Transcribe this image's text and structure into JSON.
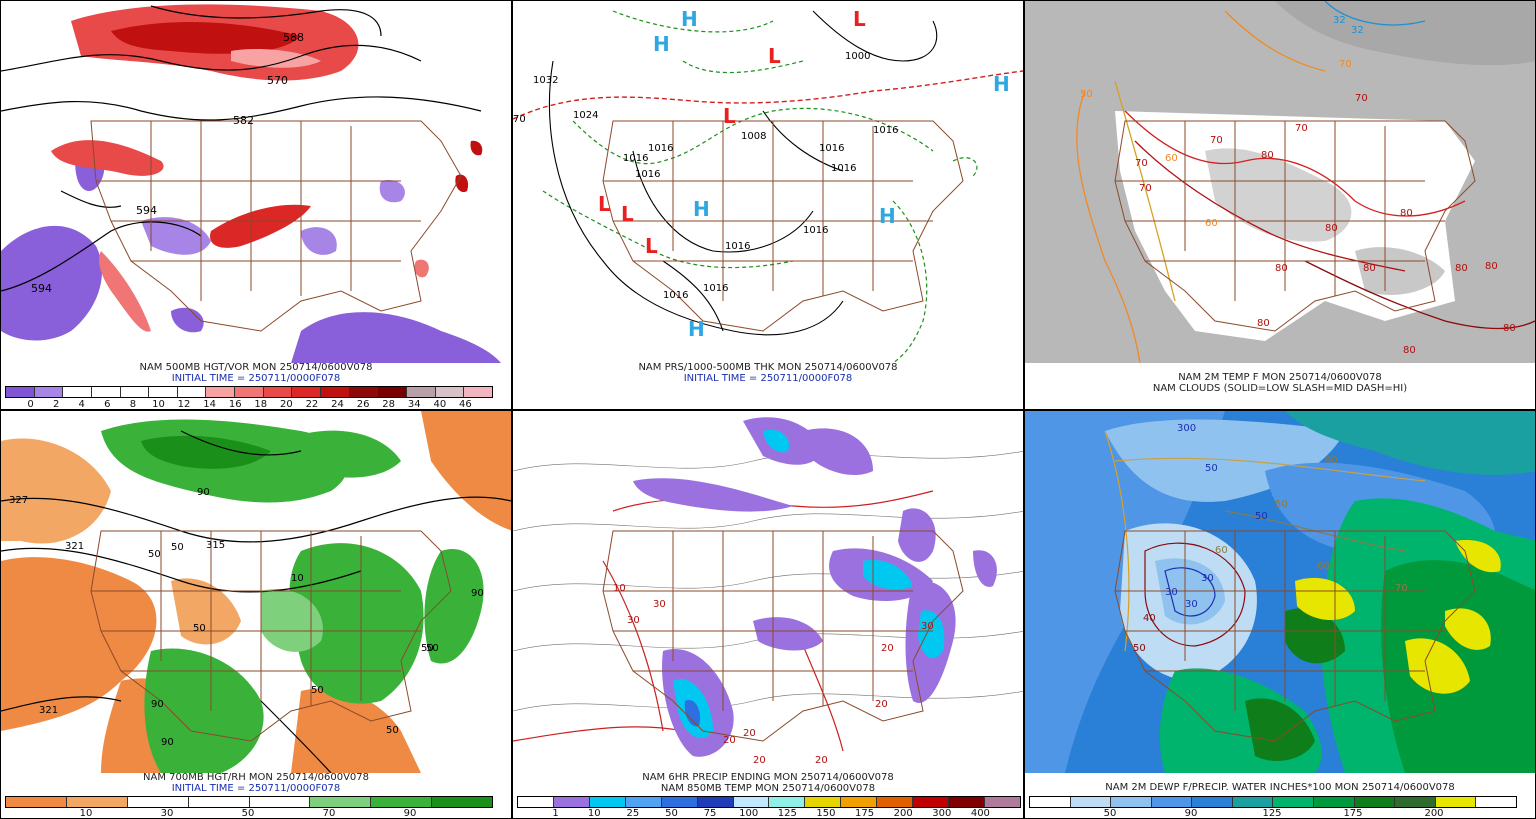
{
  "panels": [
    {
      "id": "p1",
      "caption_line1": "NAM 500MB HGT/VOR MON 250714/0600V078",
      "caption_line2": "INITIAL TIME = 250711/0000F078",
      "colorbar": {
        "colors": [
          "#7f55d6",
          "#a785e6",
          "#ffffff",
          "#ffffff",
          "#ffffff",
          "#ffffff",
          "#ffffff",
          "#f7a3a3",
          "#f07575",
          "#e84a4a",
          "#dc2727",
          "#c01010",
          "#8e0a0a",
          "#7a0000",
          "#b8a0a8",
          "#d7c2c8",
          "#f2b6c3"
        ],
        "labels": [
          "0",
          "2",
          "4",
          "6",
          "8",
          "10",
          "12",
          "14",
          "16",
          "18",
          "20",
          "22",
          "24",
          "26",
          "28",
          "34",
          "40",
          "46"
        ]
      },
      "contour_labels": [
        "588",
        "570",
        "582",
        "594",
        "594"
      ]
    },
    {
      "id": "p2",
      "caption_line1": "NAM PRS/1000-500MB THK MON 250714/0600V078",
      "caption_line2": "INITIAL TIME = 250711/0000F078",
      "contour_labels": [
        "1032",
        "1024",
        "1016",
        "1016",
        "1016",
        "1008",
        "1016",
        "1016",
        "1016",
        "1016",
        "1000",
        "1016",
        "1016",
        "1016",
        "70"
      ],
      "high_marker": "H",
      "low_marker": "L"
    },
    {
      "id": "p3",
      "caption_line1": "NAM 2M TEMP F MON 250714/0600V078",
      "caption_line2": "NAM CLOUDS (SOLID=LOW SLASH=MID DASH=HI)",
      "contour_labels": [
        "70",
        "70",
        "70",
        "60",
        "70",
        "70",
        "80",
        "80",
        "80",
        "80",
        "80",
        "80",
        "80",
        "60",
        "50",
        "32",
        "32",
        "80",
        "80",
        "80",
        "70"
      ]
    },
    {
      "id": "p4",
      "caption_line1": "NAM 700MB HGT/RH MON 250714/0600V078",
      "caption_line2": "INITIAL TIME = 250711/0000F078",
      "colorbar": {
        "colors": [
          "#ef8a45",
          "#f3a765",
          "#ffffff",
          "#ffffff",
          "#ffffff",
          "#7fd07d",
          "#3ab23a",
          "#1a8f1a"
        ],
        "labels": [
          "10",
          "30",
          "50",
          "70",
          "90"
        ]
      },
      "contour_labels": [
        "327",
        "321",
        "315",
        "321",
        "50",
        "50",
        "50",
        "50",
        "50",
        "90",
        "90",
        "90",
        "90",
        "50",
        "10",
        "50"
      ]
    },
    {
      "id": "p5",
      "caption_line1": "NAM 6HR PRECIP ENDING MON 250714/0600V078",
      "caption_line2": "NAM 850MB TEMP MON 250714/0600V078",
      "colorbar": {
        "colors": [
          "#ffffff",
          "#9b71e0",
          "#00c8f0",
          "#4fa3f0",
          "#2d6fe0",
          "#1f3db8",
          "#c0e8ff",
          "#90f0e8",
          "#e6d400",
          "#f0a000",
          "#e06000",
          "#c00000",
          "#800000",
          "#b07a9a"
        ],
        "labels": [
          "1",
          "10",
          "25",
          "50",
          "75",
          "100",
          "125",
          "150",
          "175",
          "200",
          "300",
          "400"
        ]
      },
      "contour_labels": [
        "20",
        "20",
        "20",
        "20",
        "20",
        "30",
        "30",
        "30",
        "20",
        "10"
      ]
    },
    {
      "id": "p6",
      "caption_line1": "NAM 2M DEWP F/PRECIP. WATER INCHES*100 MON 250714/0600V078",
      "colorbar": {
        "colors": [
          "#ffffff",
          "#bfdcf5",
          "#8fc2ee",
          "#4f96e6",
          "#2a7fd6",
          "#1aa0a0",
          "#00b46e",
          "#009a3c",
          "#0f7d1a",
          "#2e6c2e",
          "#e6e600",
          "#ffffff"
        ],
        "labels": [
          "50",
          "90",
          "125",
          "175",
          "200"
        ]
      },
      "contour_labels": [
        "50",
        "50",
        "30",
        "30",
        "30",
        "40",
        "50",
        "50",
        "60",
        "70",
        "60",
        "60",
        "300"
      ]
    }
  ]
}
